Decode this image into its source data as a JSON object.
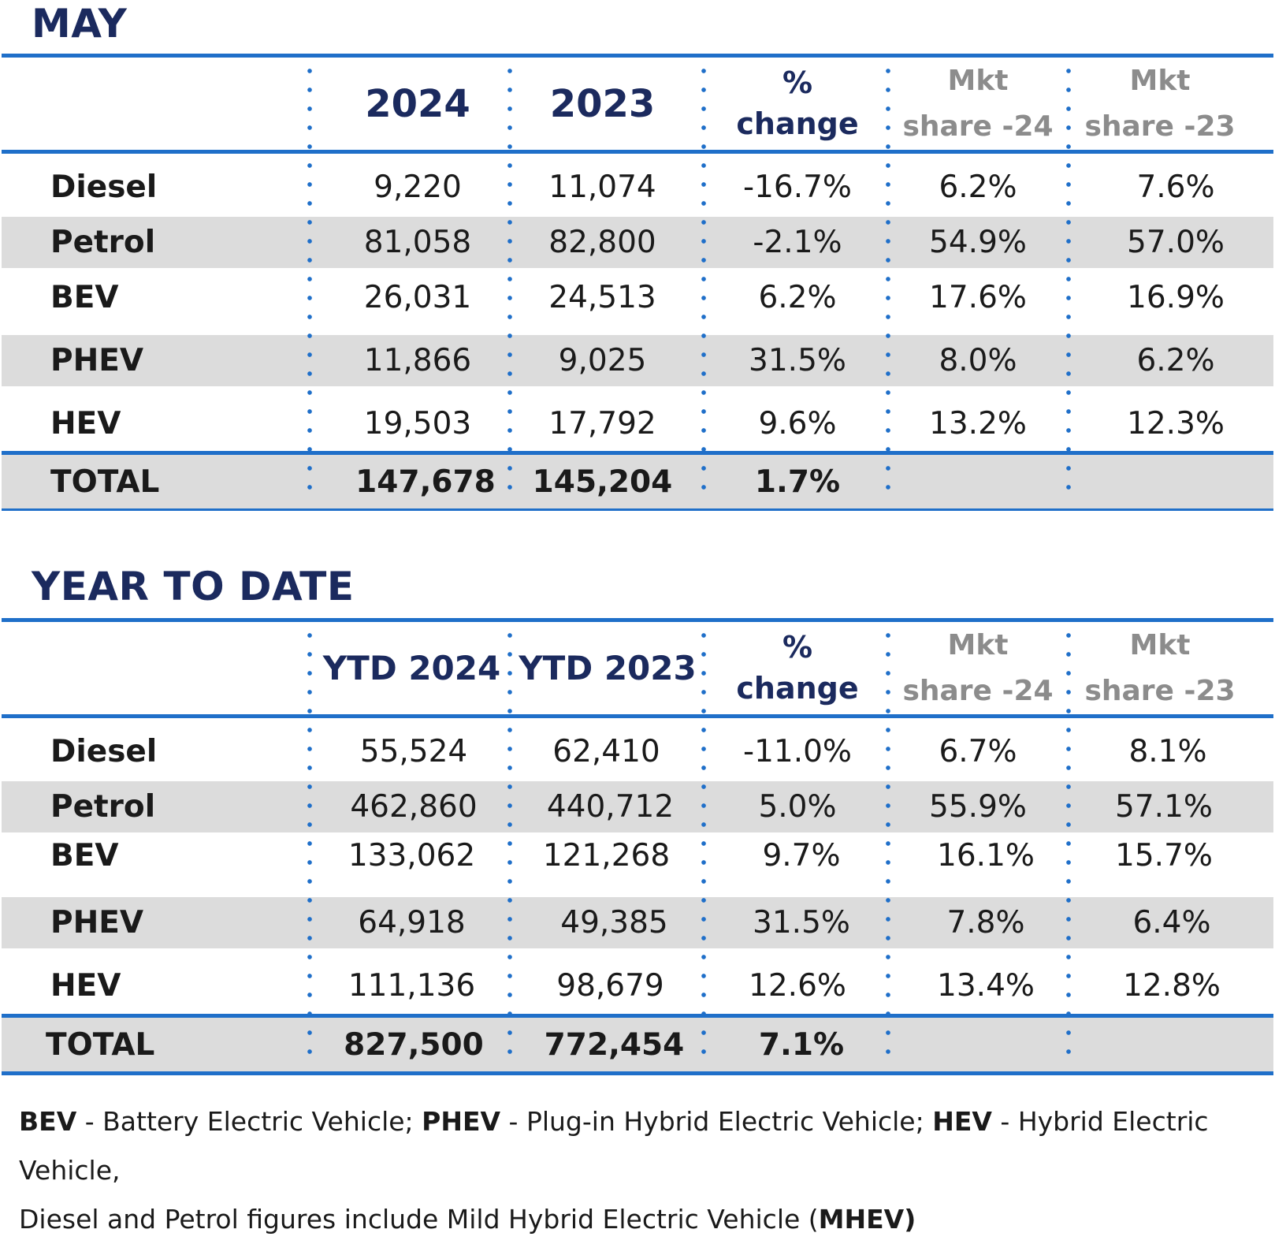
{
  "may": {
    "title": "MAY",
    "headers": {
      "col1": "2024",
      "col2": "2023",
      "chg_line1": "%",
      "chg_line2": "change",
      "mkt24_line1": "Mkt",
      "mkt24_line2": "share -24",
      "mkt23_line1": "Mkt",
      "mkt23_line2": "share -23"
    },
    "rows": [
      {
        "label": "Diesel",
        "v2024": "9,220",
        "v2023": "11,074",
        "change": "-16.7%",
        "share24": "6.2%",
        "share23": "7.6%"
      },
      {
        "label": "Petrol",
        "v2024": "81,058",
        "v2023": "82,800",
        "change": "-2.1%",
        "share24": "54.9%",
        "share23": "57.0%"
      },
      {
        "label": "BEV",
        "v2024": "26,031",
        "v2023": "24,513",
        "change": "6.2%",
        "share24": "17.6%",
        "share23": "16.9%"
      },
      {
        "label": "PHEV",
        "v2024": "11,866",
        "v2023": "9,025",
        "change": "31.5%",
        "share24": "8.0%",
        "share23": "6.2%"
      },
      {
        "label": "HEV",
        "v2024": "19,503",
        "v2023": "17,792",
        "change": "9.6%",
        "share24": "13.2%",
        "share23": "12.3%"
      }
    ],
    "total": {
      "label": "TOTAL",
      "v2024": "147,678",
      "v2023": "145,204",
      "change": "1.7%"
    }
  },
  "ytd": {
    "title": "YEAR TO DATE",
    "headers": {
      "col1": "YTD 2024",
      "col2": "YTD 2023",
      "chg_line1": "%",
      "chg_line2": "change",
      "mkt24_line1": "Mkt",
      "mkt24_line2": "share -24",
      "mkt23_line1": "Mkt",
      "mkt23_line2": "share -23"
    },
    "rows": [
      {
        "label": "Diesel",
        "v2024": "55,524",
        "v2023": "62,410",
        "change": "-11.0%",
        "share24": "6.7%",
        "share23": "8.1%"
      },
      {
        "label": "Petrol",
        "v2024": "462,860",
        "v2023": "440,712",
        "change": "5.0%",
        "share24": "55.9%",
        "share23": "57.1%"
      },
      {
        "label": "BEV",
        "v2024": "133,062",
        "v2023": "121,268",
        "change": "9.7%",
        "share24": "16.1%",
        "share23": "15.7%"
      },
      {
        "label": "PHEV",
        "v2024": "64,918",
        "v2023": "49,385",
        "change": "31.5%",
        "share24": "7.8%",
        "share23": "6.4%"
      },
      {
        "label": "HEV",
        "v2024": "111,136",
        "v2023": "98,679",
        "change": "12.6%",
        "share24": "13.4%",
        "share23": "12.8%"
      }
    ],
    "total": {
      "label": "TOTAL",
      "v2024": "827,500",
      "v2023": "772,454",
      "change": "7.1%"
    }
  },
  "footnote": {
    "bev_abbr": "BEV",
    "bev_text": " - Battery Electric Vehicle; ",
    "phev_abbr": "PHEV",
    "phev_text": " - Plug-in Hybrid Electric Vehicle; ",
    "hev_abbr": "HEV",
    "hev_text": " - Hybrid Electric Vehicle,",
    "line2_text": "Diesel and Petrol figures include Mild Hybrid Electric Vehicle (",
    "mhev_abbr": "MHEV",
    "line2_end": ")"
  },
  "colors": {
    "accent_blue": "#1f6fc9",
    "navy": "#1b2a5e",
    "grey_header": "#8c8c8c",
    "row_shade": "#dcdcdc"
  }
}
